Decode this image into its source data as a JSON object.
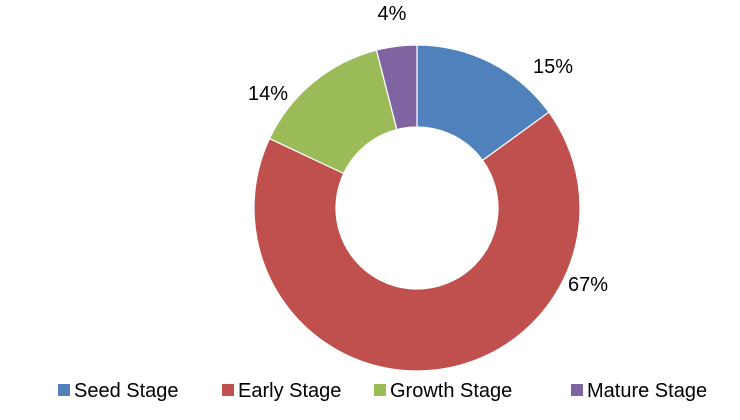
{
  "chart_data": {
    "type": "pie",
    "variant": "donut",
    "categories": [
      "Seed Stage",
      "Early Stage",
      "Growth Stage",
      "Mature Stage"
    ],
    "values": [
      15,
      67,
      14,
      4
    ],
    "data_labels": [
      "15%",
      "67%",
      "14%",
      "4%"
    ],
    "colors": [
      "#4f81bd",
      "#c0504d",
      "#9bbb59",
      "#8064a2"
    ],
    "legend": {
      "position": "bottom",
      "entries": [
        "Seed Stage",
        "Early Stage",
        "Growth Stage",
        "Mature Stage"
      ]
    }
  }
}
